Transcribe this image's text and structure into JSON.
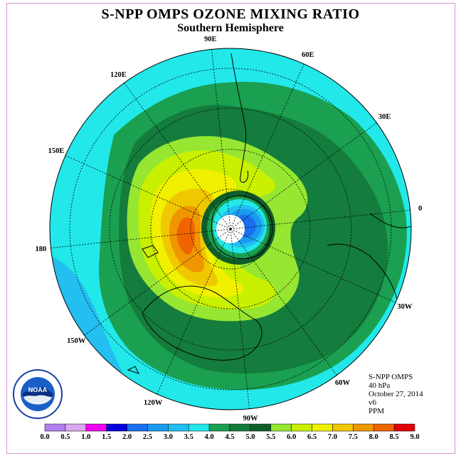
{
  "title": "S-NPP OMPS OZONE MIXING RATIO",
  "subtitle": "Southern Hemisphere",
  "longitude_labels": [
    {
      "id": "90w",
      "text": "90W",
      "lon": -90
    },
    {
      "id": "60w",
      "text": "60W",
      "lon": -60
    },
    {
      "id": "30w",
      "text": "30W",
      "lon": -30
    },
    {
      "id": "0",
      "text": "0",
      "lon": 0
    },
    {
      "id": "30e",
      "text": "30E",
      "lon": 30
    },
    {
      "id": "60e",
      "text": "60E",
      "lon": 60
    },
    {
      "id": "90e",
      "text": "90E",
      "lon": 90
    },
    {
      "id": "120e",
      "text": "120E",
      "lon": 120
    },
    {
      "id": "150e",
      "text": "150E",
      "lon": 150
    },
    {
      "id": "180",
      "text": "180",
      "lon": 180
    },
    {
      "id": "150w",
      "text": "150W",
      "lon": -150
    },
    {
      "id": "120w",
      "text": "120W",
      "lon": -120
    }
  ],
  "info": {
    "instrument": "S-NPP OMPS",
    "level": "40 hPa",
    "date": "October 27, 2014",
    "version": "v6",
    "units": "PPM"
  },
  "colorbar": {
    "ticks": [
      "0.0",
      "0.5",
      "1.0",
      "1.5",
      "2.0",
      "2.5",
      "3.0",
      "3.5",
      "4.0",
      "4.5",
      "5.0",
      "5.5",
      "6.0",
      "6.5",
      "7.0",
      "7.5",
      "8.0",
      "8.5",
      "9.0"
    ],
    "colors": [
      "#b27ff0",
      "#d9a8f0",
      "#ee00ee",
      "#0000dd",
      "#1a6fee",
      "#1a9af0",
      "#22bff0",
      "#22e8ea",
      "#1aa050",
      "#147c3c",
      "#0f5e2a",
      "#96e632",
      "#c8f000",
      "#f0f000",
      "#f0c800",
      "#f09600",
      "#f06400",
      "#e00000",
      "#8b5a3a"
    ]
  },
  "logo": {
    "text": "NOAA",
    "ring_text": "NATIONAL OCEANIC AND ATMOSPHERIC ADMINISTRATION · U.S. DEPARTMENT OF COMMERCE"
  }
}
